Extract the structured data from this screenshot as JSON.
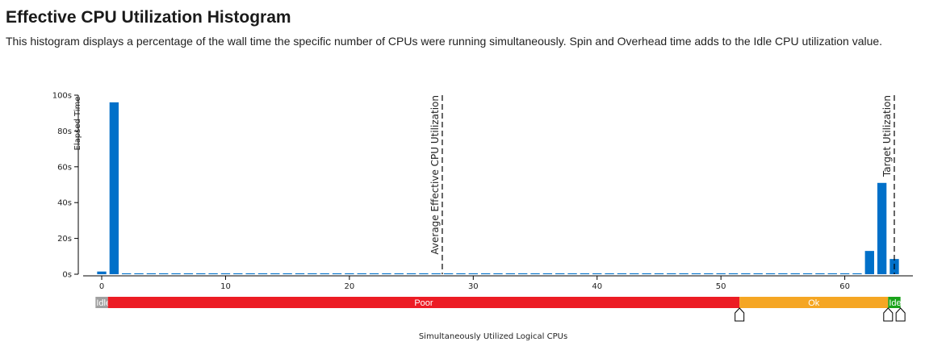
{
  "title": "Effective CPU Utilization Histogram",
  "description": "This histogram displays a percentage of the wall time the specific number of CPUs were running simultaneously. Spin and Overhead time adds to the Idle CPU utilization value.",
  "colors": {
    "bar": "#0070c9",
    "idle": "#a0a0a0",
    "poor": "#ec1c24",
    "ok": "#f5a623",
    "ideal": "#1aa31a",
    "axis": "#000000"
  },
  "chart_data": {
    "type": "bar",
    "title": "",
    "xlabel": "Simultaneously Utilized Logical CPUs",
    "ylabel": "Elapsed Time",
    "xlim": [
      -1.5,
      65.5
    ],
    "ylim": [
      0,
      100
    ],
    "x_ticks": [
      0,
      10,
      20,
      30,
      40,
      50,
      60
    ],
    "y_ticks": [
      0,
      20,
      40,
      60,
      80,
      100
    ],
    "y_tick_labels": [
      "0s",
      "20s",
      "40s",
      "60s",
      "80s",
      "100s"
    ],
    "x_tick_labels": [
      "0",
      "10",
      "20",
      "30",
      "40",
      "50",
      "60"
    ],
    "categories": [
      0,
      1,
      2,
      3,
      4,
      5,
      6,
      7,
      8,
      9,
      10,
      11,
      12,
      13,
      14,
      15,
      16,
      17,
      18,
      19,
      20,
      21,
      22,
      23,
      24,
      25,
      26,
      27,
      28,
      29,
      30,
      31,
      32,
      33,
      34,
      35,
      36,
      37,
      38,
      39,
      40,
      41,
      42,
      43,
      44,
      45,
      46,
      47,
      48,
      49,
      50,
      51,
      52,
      53,
      54,
      55,
      56,
      57,
      58,
      59,
      60,
      61,
      62,
      63,
      64
    ],
    "values": [
      1.5,
      96,
      0.5,
      0.5,
      0.5,
      0.5,
      0.5,
      0.5,
      0.5,
      0.5,
      0.5,
      0.5,
      0.5,
      0.5,
      0.5,
      0.5,
      0.5,
      0.5,
      0.5,
      0.5,
      0.5,
      0.5,
      0.5,
      0.5,
      0.5,
      0.5,
      0.5,
      0.5,
      0.5,
      0.5,
      0.5,
      0.5,
      0.5,
      0.5,
      0.5,
      0.5,
      0.5,
      0.5,
      0.5,
      0.5,
      0.5,
      0.5,
      0.5,
      0.5,
      0.5,
      0.5,
      0.5,
      0.5,
      0.5,
      0.5,
      0.5,
      0.5,
      0.5,
      0.5,
      0.5,
      0.5,
      0.5,
      0.5,
      0.5,
      0.5,
      0.5,
      0.5,
      13,
      51,
      8.5
    ],
    "annotations": [
      {
        "label": "Average Effective CPU Utilization",
        "x": 27.5
      },
      {
        "label": "Target Utilization",
        "x": 64
      }
    ],
    "utilization_bands": [
      {
        "label": "Idle",
        "from": -0.5,
        "to": 0.5,
        "color_key": "idle"
      },
      {
        "label": "Poor",
        "from": 0.5,
        "to": 51.5,
        "color_key": "poor"
      },
      {
        "label": "Ok",
        "from": 51.5,
        "to": 63.5,
        "color_key": "ok"
      },
      {
        "label": "Ideal",
        "from": 63.5,
        "to": 64.5,
        "color_key": "ideal"
      }
    ],
    "band_handles": [
      51.5,
      63.5,
      64.5
    ]
  }
}
